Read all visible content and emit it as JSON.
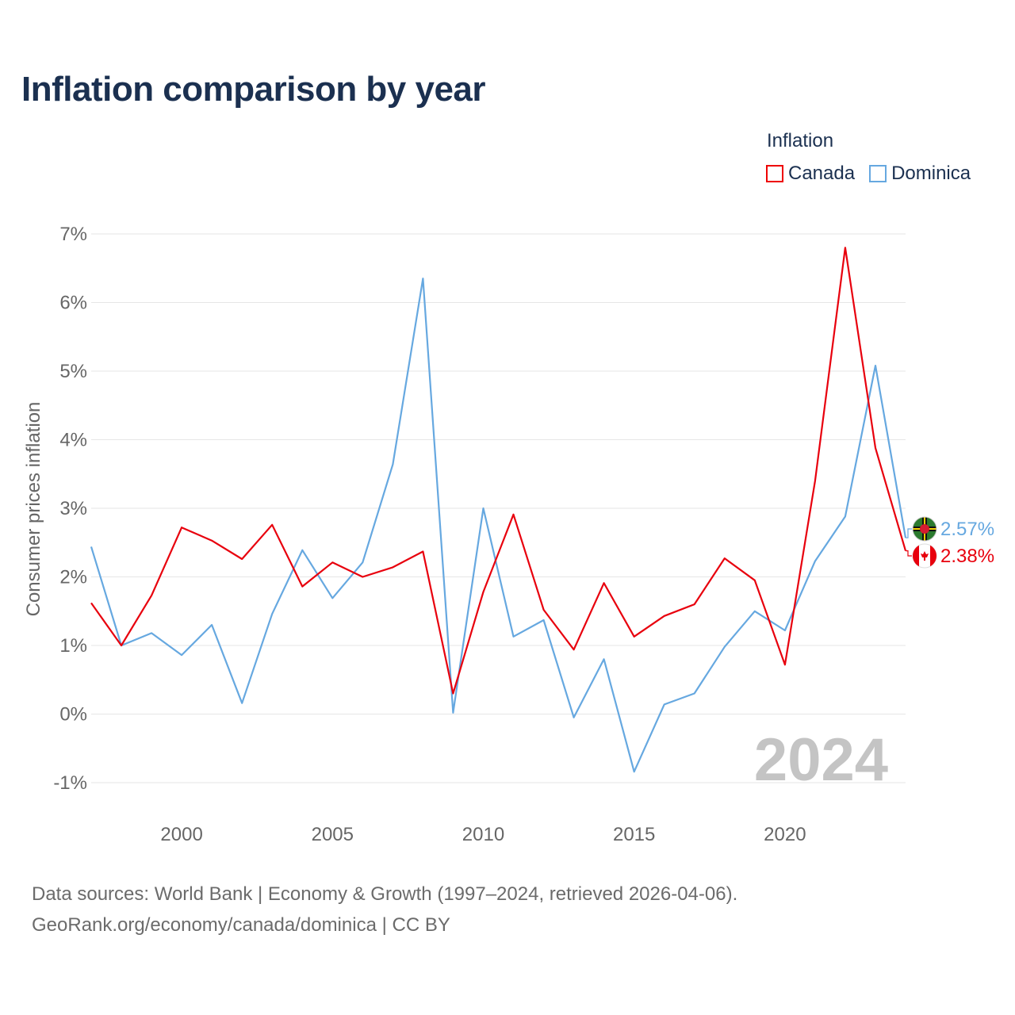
{
  "title": "Inflation comparison by year",
  "legend": {
    "title": "Inflation",
    "items": [
      {
        "label": "Canada",
        "color": "#e8000d"
      },
      {
        "label": "Dominica",
        "color": "#66a8e0"
      }
    ]
  },
  "watermark_year": "2024",
  "source": {
    "line1": "Data sources: World Bank | Economy & Growth (1997–2024, retrieved 2026-04-06).",
    "line2": "GeoRank.org/economy/canada/dominica | CC BY"
  },
  "chart_data": {
    "type": "line",
    "title": "Inflation comparison by year",
    "xlabel": "",
    "ylabel": "Consumer prices inflation",
    "xlim": [
      1997,
      2024
    ],
    "ylim": [
      -1,
      7
    ],
    "grid": true,
    "legend_position": "top-right",
    "x_ticks": [
      2000,
      2005,
      2010,
      2015,
      2020
    ],
    "y_ticks": [
      -1,
      0,
      1,
      2,
      3,
      4,
      5,
      6,
      7
    ],
    "y_tick_labels": [
      "-1%",
      "0%",
      "1%",
      "2%",
      "3%",
      "4%",
      "5%",
      "6%",
      "7%"
    ],
    "x": [
      1997,
      1998,
      1999,
      2000,
      2001,
      2002,
      2003,
      2004,
      2005,
      2006,
      2007,
      2008,
      2009,
      2010,
      2011,
      2012,
      2013,
      2014,
      2015,
      2016,
      2017,
      2018,
      2019,
      2020,
      2021,
      2022,
      2023,
      2024
    ],
    "series": [
      {
        "name": "Canada",
        "color": "#e8000d",
        "end_label": "2.38%",
        "values": [
          1.62,
          1.0,
          1.73,
          2.72,
          2.53,
          2.26,
          2.76,
          1.86,
          2.21,
          2.0,
          2.14,
          2.37,
          0.3,
          1.78,
          2.91,
          1.52,
          0.94,
          1.91,
          1.13,
          1.43,
          1.6,
          2.27,
          1.95,
          0.72,
          3.4,
          6.8,
          3.88,
          2.38
        ]
      },
      {
        "name": "Dominica",
        "color": "#66a8e0",
        "end_label": "2.57%",
        "values": [
          2.44,
          1.0,
          1.18,
          0.86,
          1.3,
          0.16,
          1.46,
          2.39,
          1.69,
          2.21,
          3.64,
          6.35,
          0.02,
          3.0,
          1.13,
          1.37,
          -0.05,
          0.8,
          -0.84,
          0.14,
          0.3,
          0.98,
          1.5,
          1.22,
          2.23,
          2.88,
          5.08,
          2.57
        ]
      }
    ]
  }
}
